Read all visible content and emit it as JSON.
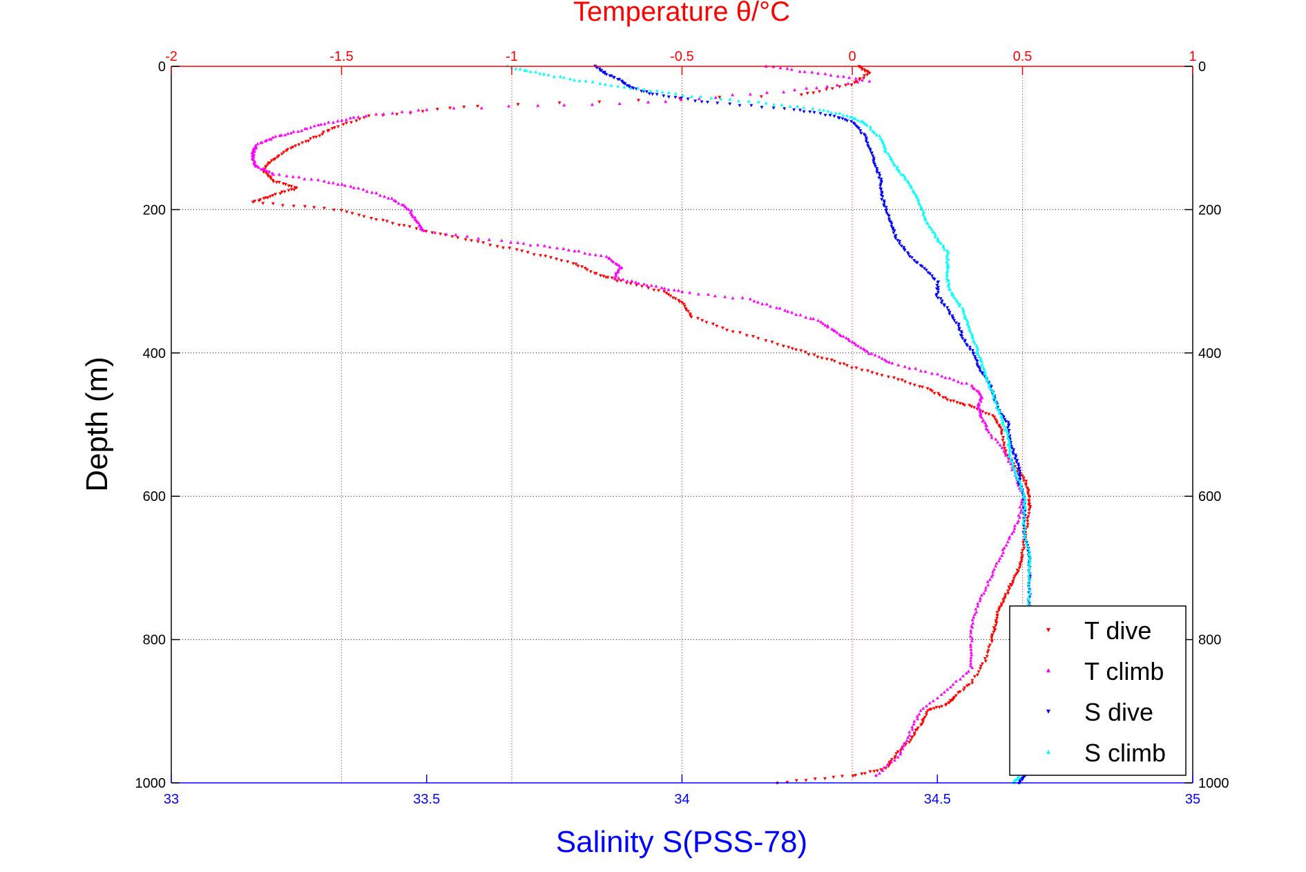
{
  "chart_data": {
    "type": "scatter",
    "title": "Temperature θ/°C",
    "xlabel": "Salinity S(PSS-78)",
    "ylabel": "Depth (m)",
    "xlim_salinity": [
      33,
      35
    ],
    "xlim_temperature": [
      -2,
      1
    ],
    "ylim_depth": [
      0,
      1000
    ],
    "y_reversed": true,
    "grid": true,
    "legend_position": "bottom-right",
    "salinity_ticks": [
      "33",
      "33.5",
      "34",
      "34.5",
      "35"
    ],
    "temperature_ticks": [
      "-2",
      "-1.5",
      "-1",
      "-0.5",
      "0",
      "0.5",
      "1"
    ],
    "depth_ticks": [
      "0",
      "200",
      "400",
      "600",
      "800",
      "1000"
    ],
    "colors": {
      "t_dive": "#ff0000",
      "t_climb": "#ff00ff",
      "s_dive": "#0000ff",
      "s_climb": "#00ffff",
      "temperature_axis": "#ff0000",
      "salinity_axis": "#0000ff"
    },
    "series": [
      {
        "name": "T dive",
        "axis": "temperature",
        "marker": "down-triangle",
        "depth": [
          0,
          10,
          25,
          40,
          55,
          70,
          85,
          100,
          115,
          130,
          145,
          160,
          170,
          180,
          190,
          200,
          215,
          230,
          245,
          260,
          275,
          290,
          300,
          315,
          330,
          350,
          370,
          390,
          405,
          420,
          435,
          450,
          465,
          475,
          490,
          510,
          540,
          560,
          580,
          600,
          620,
          650,
          680,
          700,
          720,
          740,
          760,
          780,
          800,
          830,
          860,
          880,
          890,
          900,
          920,
          940,
          960,
          980,
          990,
          1000
        ],
        "values": [
          0.02,
          0.05,
          0.0,
          -0.15,
          -1.1,
          -1.42,
          -1.52,
          -1.58,
          -1.65,
          -1.7,
          -1.73,
          -1.7,
          -1.63,
          -1.7,
          -1.76,
          -1.52,
          -1.38,
          -1.25,
          -1.1,
          -0.95,
          -0.82,
          -0.75,
          -0.68,
          -0.55,
          -0.5,
          -0.47,
          -0.35,
          -0.2,
          -0.1,
          0.0,
          0.12,
          0.22,
          0.28,
          0.35,
          0.42,
          0.44,
          0.45,
          0.48,
          0.51,
          0.52,
          0.52,
          0.51,
          0.5,
          0.49,
          0.47,
          0.45,
          0.43,
          0.42,
          0.41,
          0.39,
          0.35,
          0.3,
          0.28,
          0.22,
          0.2,
          0.17,
          0.13,
          0.1,
          0.0,
          -0.22
        ]
      },
      {
        "name": "T climb",
        "axis": "temperature",
        "marker": "up-triangle",
        "depth": [
          0,
          10,
          20,
          35,
          50,
          60,
          70,
          80,
          90,
          100,
          110,
          120,
          130,
          140,
          150,
          160,
          170,
          185,
          200,
          215,
          230,
          245,
          255,
          265,
          280,
          295,
          305,
          315,
          325,
          340,
          355,
          370,
          385,
          400,
          415,
          430,
          445,
          460,
          475,
          490,
          510,
          540,
          570,
          600,
          630,
          660,
          690,
          720,
          750,
          780,
          810,
          840,
          870,
          900,
          930,
          960,
          990
        ],
        "values": [
          -0.25,
          -0.1,
          0.05,
          -0.2,
          -0.6,
          -1.25,
          -1.45,
          -1.55,
          -1.63,
          -1.7,
          -1.75,
          -1.76,
          -1.76,
          -1.75,
          -1.7,
          -1.55,
          -1.45,
          -1.35,
          -1.3,
          -1.28,
          -1.26,
          -1.0,
          -0.85,
          -0.72,
          -0.68,
          -0.7,
          -0.6,
          -0.5,
          -0.3,
          -0.2,
          -0.1,
          -0.05,
          0.0,
          0.05,
          0.12,
          0.25,
          0.35,
          0.38,
          0.37,
          0.38,
          0.4,
          0.45,
          0.48,
          0.5,
          0.49,
          0.46,
          0.43,
          0.4,
          0.37,
          0.35,
          0.35,
          0.35,
          0.28,
          0.2,
          0.17,
          0.14,
          0.07
        ]
      },
      {
        "name": "S dive",
        "axis": "salinity",
        "marker": "down-triangle",
        "depth": [
          0,
          10,
          20,
          30,
          40,
          50,
          60,
          70,
          80,
          100,
          120,
          140,
          160,
          180,
          200,
          220,
          240,
          260,
          280,
          300,
          320,
          340,
          360,
          380,
          400,
          420,
          440,
          460,
          480,
          500,
          520,
          540,
          560,
          580,
          600,
          620,
          650,
          680,
          700,
          730,
          760,
          800,
          850,
          900,
          950,
          990,
          1000
        ],
        "values": [
          33.83,
          33.85,
          33.88,
          33.9,
          33.95,
          34.05,
          34.22,
          34.3,
          34.34,
          34.36,
          34.37,
          34.38,
          34.39,
          34.39,
          34.4,
          34.41,
          34.42,
          34.44,
          34.47,
          34.5,
          34.5,
          34.52,
          34.54,
          34.55,
          34.57,
          34.58,
          34.6,
          34.61,
          34.62,
          34.64,
          34.64,
          34.65,
          34.66,
          34.66,
          34.67,
          34.67,
          34.67,
          34.68,
          34.68,
          34.68,
          34.68,
          34.68,
          34.68,
          34.68,
          34.67,
          34.67,
          34.66
        ]
      },
      {
        "name": "S climb",
        "axis": "salinity",
        "marker": "up-triangle",
        "depth": [
          0,
          10,
          20,
          30,
          40,
          50,
          60,
          70,
          80,
          100,
          120,
          140,
          160,
          180,
          200,
          220,
          240,
          260,
          280,
          300,
          320,
          340,
          360,
          380,
          400,
          420,
          440,
          460,
          480,
          500,
          520,
          540,
          560,
          580,
          600,
          620,
          650,
          680,
          700,
          730,
          760,
          800,
          850,
          900,
          950,
          990,
          1000
        ],
        "values": [
          33.66,
          33.72,
          33.8,
          33.9,
          34.0,
          34.15,
          34.27,
          34.33,
          34.36,
          34.39,
          34.4,
          34.42,
          34.44,
          34.46,
          34.47,
          34.48,
          34.5,
          34.52,
          34.52,
          34.52,
          34.53,
          34.55,
          34.56,
          34.57,
          34.58,
          34.59,
          34.6,
          34.61,
          34.62,
          34.63,
          34.64,
          34.64,
          34.65,
          34.66,
          34.67,
          34.67,
          34.67,
          34.68,
          34.68,
          34.68,
          34.68,
          34.68,
          34.67,
          34.67,
          34.66,
          34.66,
          34.65
        ]
      }
    ]
  }
}
